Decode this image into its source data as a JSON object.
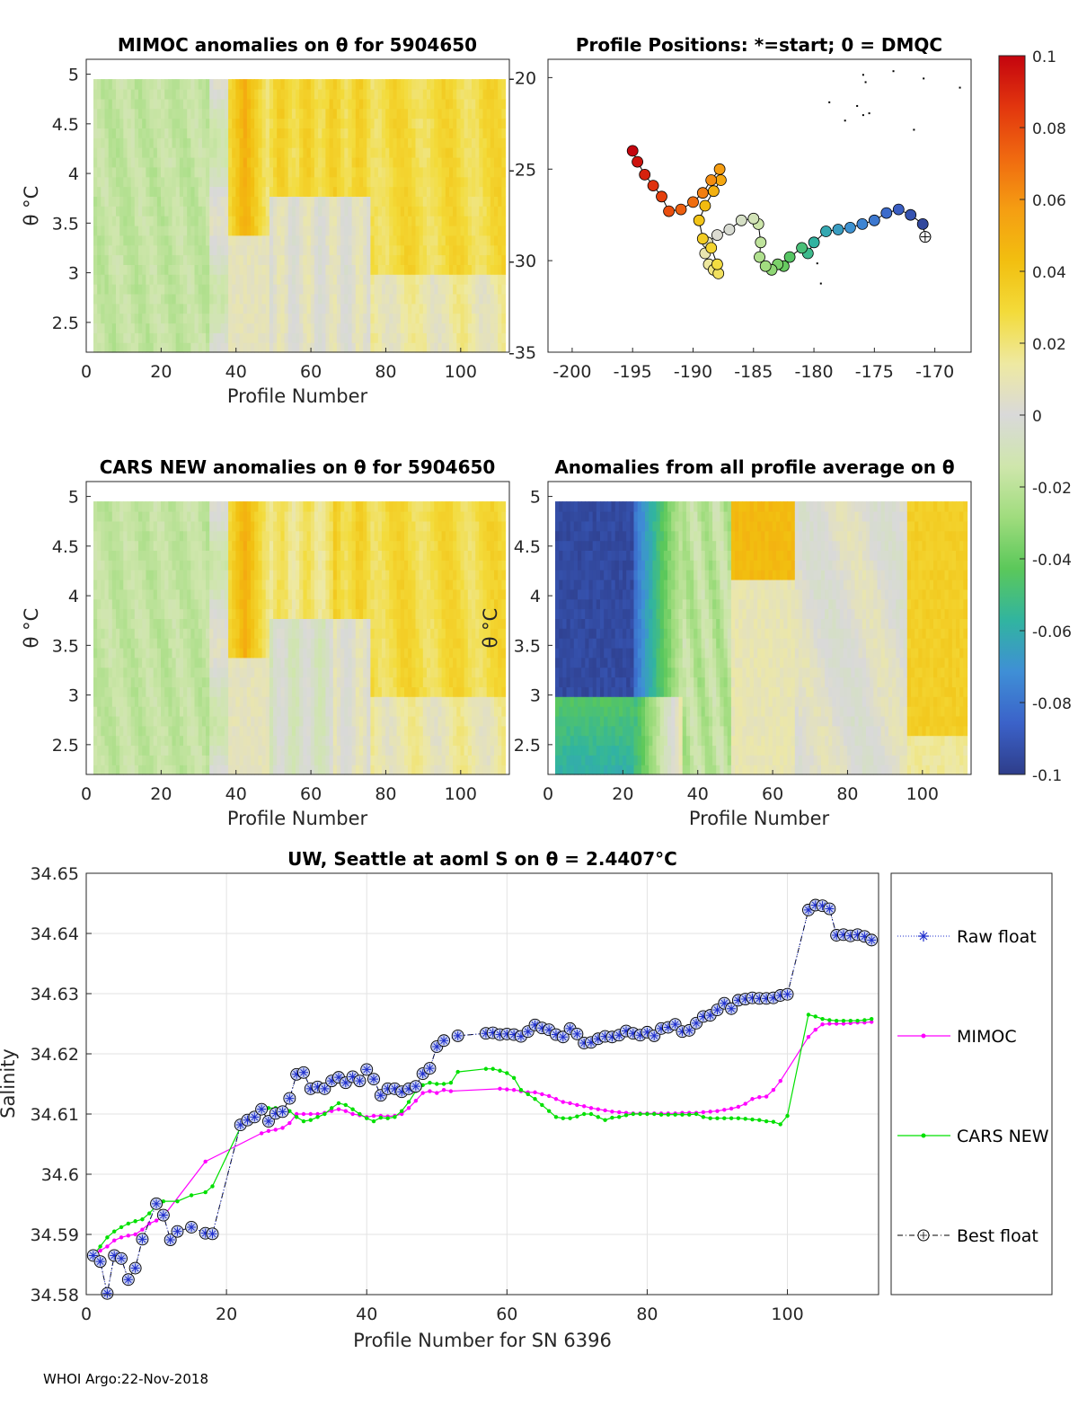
{
  "footer": "WHOI Argo:22-Nov-2018",
  "colors": {
    "raw": "#1f2fcc",
    "mimoc": "#ff00ff",
    "cars": "#00e000",
    "best": "#000000",
    "colormap": [
      "#2e3d8a",
      "#3b62c9",
      "#3f8fd6",
      "#31b4a0",
      "#5bc85a",
      "#9fdc7d",
      "#cfe6ac",
      "#d9d9d9",
      "#eee9a2",
      "#f3db3a",
      "#f2bf10",
      "#f59e12",
      "#f06a10",
      "#e2360e",
      "#c4040e"
    ]
  },
  "panels": [
    {
      "title": "MIMOC anomalies on θ  for 5904650",
      "xlabel": "Profile Number",
      "ylabel": "θ °C",
      "xlim": [
        0,
        113
      ],
      "ylim": [
        2.2,
        5.15
      ],
      "xticks": [
        0,
        20,
        40,
        60,
        80,
        100
      ],
      "yticks": [
        2.5,
        3,
        3.5,
        4,
        4.5,
        5
      ]
    },
    {
      "title": "CARS NEW anomalies on θ for 5904650",
      "xlabel": "Profile Number",
      "ylabel": "θ °C",
      "xlim": [
        0,
        113
      ],
      "ylim": [
        2.2,
        5.15
      ],
      "xticks": [
        0,
        20,
        40,
        60,
        80,
        100
      ],
      "yticks": [
        2.5,
        3,
        3.5,
        4,
        4.5,
        5
      ]
    },
    {
      "title": "Anomalies from all profile average on θ",
      "xlabel": "Profile Number",
      "ylabel": "θ °C",
      "xlim": [
        0,
        113
      ],
      "ylim": [
        2.2,
        5.15
      ],
      "xticks": [
        0,
        20,
        40,
        60,
        80,
        100
      ],
      "yticks": [
        2.5,
        3,
        3.5,
        4,
        4.5,
        5
      ]
    }
  ],
  "map": {
    "title": "Profile Positions: *=start; 0 = DMQC",
    "xlim": [
      -202,
      -167
    ],
    "ylim": [
      -35,
      -19
    ],
    "xticks": [
      -200,
      -195,
      -190,
      -185,
      -180,
      -175,
      -170
    ],
    "yticks": [
      -35,
      -30,
      -25,
      -20
    ]
  },
  "colorbar": {
    "ticks": [
      "0.1",
      "0.08",
      "0.06",
      "0.04",
      "0.02",
      "0",
      "-0.02",
      "-0.04",
      "-0.06",
      "-0.08",
      "-0.1"
    ]
  },
  "chart_data": {
    "type": "line",
    "title": "UW, Seattle at aoml S on θ = 2.4407°C",
    "xlabel": "Profile Number for SN 6396",
    "ylabel": "Salinity",
    "xlim": [
      0,
      113
    ],
    "ylim": [
      34.58,
      34.65
    ],
    "xticks": [
      0,
      20,
      40,
      60,
      80,
      100
    ],
    "yticks": [
      "34.58",
      "34.59",
      "34.6",
      "34.61",
      "34.62",
      "34.63",
      "34.64",
      "34.65"
    ],
    "legend": [
      "Raw float",
      "MIMOC",
      "CARS NEW",
      "Best float"
    ],
    "series": [
      {
        "name": "Raw float",
        "x": [
          1,
          2,
          3,
          4,
          5,
          6,
          7,
          8,
          10,
          11,
          12,
          13,
          15,
          17,
          18,
          22,
          23,
          24,
          25,
          26,
          27,
          28,
          29,
          30,
          31,
          32,
          33,
          34,
          35,
          36,
          37,
          38,
          39,
          40,
          41,
          42,
          43,
          44,
          45,
          46,
          47,
          48,
          49,
          50,
          51,
          53,
          57,
          58,
          59,
          60,
          61,
          62,
          63,
          64,
          65,
          66,
          67,
          68,
          69,
          70,
          71,
          72,
          73,
          74,
          75,
          76,
          77,
          78,
          79,
          80,
          81,
          82,
          83,
          84,
          85,
          86,
          87,
          88,
          89,
          90,
          91,
          92,
          93,
          94,
          95,
          96,
          97,
          98,
          99,
          100,
          103,
          104,
          105,
          106,
          107,
          108,
          109,
          110,
          111,
          112
        ],
        "y": [
          34.5865,
          34.5855,
          34.5802,
          34.5865,
          34.586,
          34.5825,
          34.5844,
          34.5892,
          34.5951,
          34.5932,
          34.5891,
          34.5905,
          34.5912,
          34.5902,
          34.5901,
          34.6082,
          34.609,
          34.6095,
          34.6108,
          34.6088,
          34.6101,
          34.6104,
          34.6126,
          34.6166,
          34.6169,
          34.6142,
          34.6145,
          34.6142,
          34.6155,
          34.6161,
          34.6152,
          34.6162,
          34.6155,
          34.6174,
          34.6158,
          34.6131,
          34.6142,
          34.6142,
          34.6137,
          34.6142,
          34.6146,
          34.6167,
          34.6176,
          34.6212,
          34.6222,
          34.623,
          34.6234,
          34.6235,
          34.6232,
          34.6233,
          34.6232,
          34.6229,
          34.6237,
          34.6248,
          34.6243,
          34.624,
          34.6232,
          34.6228,
          34.6242,
          34.6233,
          34.6218,
          34.6219,
          34.6225,
          34.6229,
          34.6228,
          34.6231,
          34.6238,
          34.6234,
          34.6231,
          34.6236,
          34.623,
          34.6242,
          34.6244,
          34.6249,
          34.6237,
          34.6239,
          34.6251,
          34.6262,
          34.6264,
          34.6273,
          34.6284,
          34.6275,
          34.6289,
          34.6291,
          34.6293,
          34.6292,
          34.6292,
          34.6293,
          34.6297,
          34.6299,
          34.6439,
          34.6447,
          34.6446,
          34.6441,
          34.6397,
          34.6398,
          34.6396,
          34.6398,
          34.6395,
          34.6389
        ]
      },
      {
        "name": "MIMOC",
        "x": [
          1,
          2,
          3,
          4,
          5,
          6,
          7,
          8,
          9,
          10,
          11,
          17,
          25,
          26,
          27,
          28,
          29,
          30,
          31,
          32,
          33,
          34,
          35,
          36,
          37,
          38,
          39,
          40,
          41,
          42,
          43,
          44,
          45,
          46,
          47,
          48,
          49,
          50,
          51,
          52,
          59,
          60,
          61,
          62,
          63,
          64,
          65,
          66,
          67,
          68,
          69,
          70,
          71,
          72,
          73,
          74,
          75,
          76,
          77,
          78,
          79,
          80,
          81,
          82,
          83,
          84,
          85,
          86,
          87,
          88,
          89,
          90,
          91,
          92,
          93,
          94,
          95,
          96,
          97,
          98,
          99,
          103,
          104,
          105,
          106,
          107,
          108,
          109,
          110,
          111,
          112
        ],
        "y": [
          34.5865,
          34.5873,
          34.588,
          34.589,
          34.5895,
          34.5898,
          34.59,
          34.5908,
          34.5918,
          34.5923,
          34.593,
          34.6021,
          34.6068,
          34.6072,
          34.6074,
          34.6077,
          34.6085,
          34.61,
          34.61,
          34.61,
          34.61,
          34.6102,
          34.6105,
          34.6108,
          34.6105,
          34.61,
          34.6098,
          34.6095,
          34.6097,
          34.6097,
          34.6096,
          34.6097,
          34.61,
          34.611,
          34.6122,
          34.6135,
          34.6138,
          34.6135,
          34.614,
          34.6138,
          34.6142,
          34.6141,
          34.614,
          34.6138,
          34.6136,
          34.6136,
          34.6133,
          34.613,
          34.6125,
          34.612,
          34.6118,
          34.6115,
          34.6113,
          34.611,
          34.6108,
          34.6106,
          34.6104,
          34.6103,
          34.6102,
          34.6101,
          34.6101,
          34.6101,
          34.6101,
          34.6101,
          34.6101,
          34.6101,
          34.6102,
          34.6102,
          34.6102,
          34.6103,
          34.6104,
          34.6105,
          34.6107,
          34.6109,
          34.6112,
          34.6117,
          34.6125,
          34.6128,
          34.6129,
          34.614,
          34.6155,
          34.6228,
          34.624,
          34.6249,
          34.625,
          34.625,
          34.625,
          34.6251,
          34.6252,
          34.6252,
          34.6253
        ]
      },
      {
        "name": "CARS NEW",
        "x": [
          1,
          2,
          3,
          4,
          5,
          6,
          7,
          8,
          9,
          10,
          11,
          13,
          15,
          17,
          18,
          22,
          23,
          24,
          25,
          26,
          27,
          28,
          29,
          30,
          31,
          32,
          33,
          34,
          35,
          36,
          37,
          38,
          39,
          40,
          41,
          42,
          43,
          44,
          45,
          46,
          47,
          48,
          49,
          50,
          51,
          52,
          53,
          57,
          58,
          59,
          60,
          61,
          62,
          63,
          64,
          65,
          66,
          67,
          68,
          69,
          70,
          71,
          72,
          73,
          74,
          75,
          76,
          77,
          78,
          79,
          80,
          81,
          82,
          83,
          84,
          85,
          86,
          87,
          88,
          89,
          90,
          91,
          92,
          93,
          94,
          95,
          96,
          97,
          98,
          99,
          100,
          103,
          104,
          105,
          106,
          107,
          108,
          109,
          110,
          111,
          112
        ],
        "y": [
          34.5865,
          34.588,
          34.5895,
          34.5905,
          34.5912,
          34.5918,
          34.5922,
          34.5925,
          34.5935,
          34.5948,
          34.5955,
          34.5955,
          34.5965,
          34.597,
          34.598,
          34.6078,
          34.6085,
          34.6095,
          34.6105,
          34.611,
          34.611,
          34.611,
          34.6105,
          34.6095,
          34.6088,
          34.609,
          34.6095,
          34.61,
          34.611,
          34.6118,
          34.6115,
          34.6108,
          34.61,
          34.6093,
          34.6088,
          34.6094,
          34.6093,
          34.6095,
          34.6105,
          34.612,
          34.6138,
          34.6148,
          34.6152,
          34.615,
          34.615,
          34.6152,
          34.617,
          34.6175,
          34.6175,
          34.6172,
          34.6168,
          34.616,
          34.614,
          34.6133,
          34.6125,
          34.6115,
          34.6105,
          34.6095,
          34.6093,
          34.6093,
          34.6096,
          34.61,
          34.61,
          34.6095,
          34.609,
          34.6094,
          34.6095,
          34.6098,
          34.61,
          34.61,
          34.61,
          34.61,
          34.6099,
          34.6099,
          34.6099,
          34.6099,
          34.6099,
          34.61,
          34.6095,
          34.6093,
          34.6093,
          34.6093,
          34.6093,
          34.6093,
          34.6092,
          34.6091,
          34.609,
          34.6088,
          34.6087,
          34.6083,
          34.6097,
          34.6265,
          34.6262,
          34.6258,
          34.6256,
          34.6255,
          34.6255,
          34.6255,
          34.6255,
          34.6256,
          34.6258
        ]
      }
    ]
  }
}
